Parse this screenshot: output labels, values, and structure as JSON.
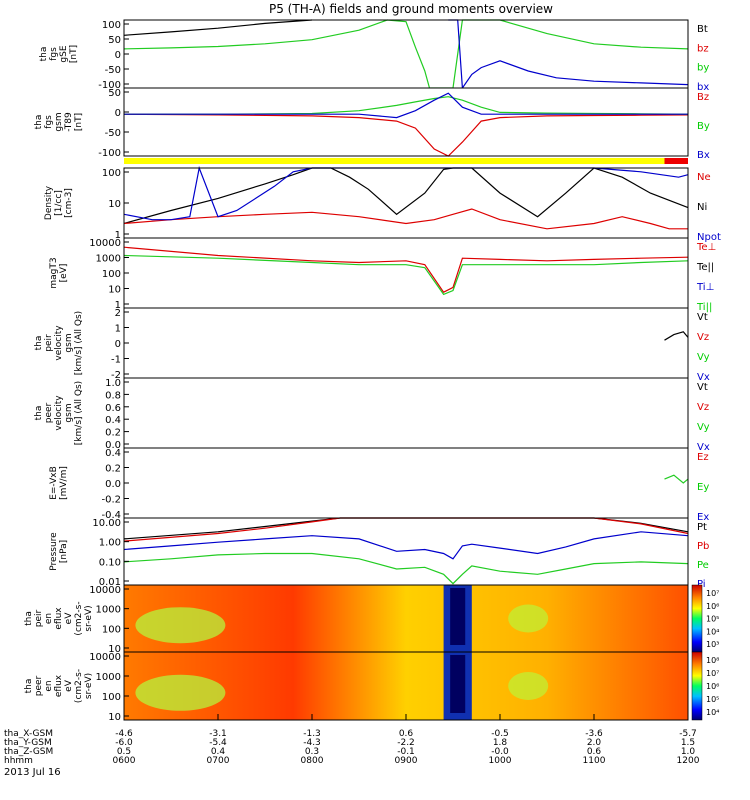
{
  "title": "P5 (TH-A) fields and ground moments overview",
  "date_label": "2013 Jul 16",
  "colorbar_top_bottom": {
    "top": "#cc0000",
    "bottom": "#000060"
  },
  "chart_data": {
    "type": "line",
    "x_axis": {
      "unit": "hhmm",
      "ticks": [
        "0600",
        "0700",
        "0800",
        "0900",
        "1000",
        "1100",
        "1200"
      ],
      "extra_rows": [
        {
          "label": "tha_X-GSM",
          "values": [
            "-4.6",
            "-3.1",
            "-1.3",
            "0.6",
            "-0.5",
            "-3.6",
            "-5.7"
          ]
        },
        {
          "label": "tha_Y-GSM",
          "values": [
            "-6.0",
            "-5.4",
            "-4.3",
            "-2.2",
            "1.8",
            "2.0",
            "1.5"
          ]
        },
        {
          "label": "tha_Z-GSM",
          "values": [
            "0.5",
            "0.4",
            "0.3",
            "-0.1",
            "-0.0",
            "0.6",
            "1.0"
          ]
        }
      ],
      "time_range": [
        "0600",
        "1200"
      ]
    },
    "panels": [
      {
        "id": "fgs-gse",
        "ylabel": [
          "tha",
          "fgs",
          "gSE",
          "[nT]"
        ],
        "yticks": [
          "100",
          "50",
          "0",
          "-50",
          "-100"
        ],
        "ylim": [
          -100,
          100
        ],
        "legend": [
          "Bt",
          "bz",
          "by",
          "bx"
        ],
        "legend_colors": [
          "#000000",
          "#dd0000",
          "#00cc00",
          "#0000cc"
        ],
        "series": [
          {
            "name": "Bt",
            "color": "#000000",
            "x": [
              6.0,
              6.5,
              7.0,
              7.5,
              8.0
            ],
            "y": [
              55,
              65,
              76,
              90,
              100
            ]
          },
          {
            "name": "by",
            "color": "#22cc22",
            "x": [
              6.0,
              6.5,
              7.0,
              7.5,
              8.0,
              8.5,
              8.8,
              9.0,
              9.1,
              9.2,
              9.25,
              9.5,
              9.6,
              10.0,
              10.5,
              11.0,
              11.5,
              12.0
            ],
            "y": [
              15,
              18,
              22,
              30,
              42,
              70,
              100,
              95,
              20,
              -50,
              -100,
              -100,
              100,
              100,
              60,
              30,
              20,
              15
            ]
          },
          {
            "name": "bx",
            "color": "#0000cc",
            "x": [
              9.45,
              9.5,
              9.55,
              9.6,
              9.7,
              9.8,
              10.0,
              10.3,
              10.6,
              11.0,
              11.5,
              12.0
            ],
            "y": [
              100,
              100,
              100,
              -100,
              -60,
              -40,
              -20,
              -50,
              -70,
              -80,
              -85,
              -90
            ]
          }
        ]
      },
      {
        "id": "fgs-gsm-dipole",
        "ylabel": [
          "tha",
          "fgs",
          "gsm",
          "-T89",
          "[nT]"
        ],
        "yticks": [
          "50",
          "0",
          "-50",
          "-100"
        ],
        "ylim": [
          -120,
          75
        ],
        "legend": [
          "Bz",
          "By",
          "Bx"
        ],
        "legend_colors": [
          "#dd0000",
          "#00cc00",
          "#0000cc"
        ],
        "series": [
          {
            "name": "Bz",
            "color": "#dd0000",
            "x": [
              6.0,
              7.0,
              8.0,
              8.5,
              8.9,
              9.1,
              9.3,
              9.45,
              9.6,
              9.8,
              10.0,
              10.5,
              11.0,
              11.5,
              12.0
            ],
            "y": [
              0,
              -2,
              -5,
              -10,
              -20,
              -40,
              -100,
              -120,
              -80,
              -20,
              -10,
              -5,
              -4,
              -3,
              -2
            ]
          },
          {
            "name": "By",
            "color": "#22cc22",
            "x": [
              6.0,
              7.0,
              8.0,
              8.5,
              8.9,
              9.1,
              9.3,
              9.45,
              9.6,
              9.8,
              10.0,
              10.5,
              11.0,
              11.5,
              12.0
            ],
            "y": [
              0,
              0,
              2,
              10,
              25,
              35,
              45,
              50,
              40,
              20,
              5,
              3,
              2,
              1,
              0
            ]
          },
          {
            "name": "Bx",
            "color": "#0000cc",
            "x": [
              6.0,
              7.0,
              8.0,
              8.5,
              8.9,
              9.1,
              9.3,
              9.45,
              9.6,
              9.8,
              10.0,
              10.5,
              11.0,
              11.5,
              12.0
            ],
            "y": [
              0,
              0,
              0,
              0,
              -10,
              10,
              40,
              60,
              20,
              0,
              0,
              0,
              0,
              0,
              0
            ]
          }
        ],
        "mode_bar": {
          "segments": [
            {
              "from": 6.0,
              "to": 11.75,
              "color": "#ffff00"
            },
            {
              "from": 11.75,
              "to": 12.0,
              "color": "#ee0000"
            }
          ]
        }
      },
      {
        "id": "density",
        "ylabel": [
          "Density",
          "[1/cc]",
          "[cm-3]"
        ],
        "yticks": [
          "100",
          "10",
          "1"
        ],
        "ylim": [
          1,
          200
        ],
        "log": true,
        "legend": [
          "Ne",
          "Ni",
          "Npot"
        ],
        "legend_colors": [
          "#dd0000",
          "#000000",
          "#0000cc"
        ],
        "series": [
          {
            "name": "Ni",
            "color": "#000000",
            "x": [
              6.0,
              6.5,
              7.0,
              7.5,
              7.8,
              8.0,
              8.2,
              8.4,
              8.6,
              8.9,
              9.2,
              9.4,
              9.5,
              9.7,
              10.0,
              10.4,
              10.7,
              11.0,
              11.3,
              11.6,
              12.0
            ],
            "y": [
              3,
              8,
              20,
              60,
              120,
              200,
              200,
              100,
              40,
              6,
              30,
              180,
              200,
              200,
              30,
              5,
              30,
              200,
              100,
              30,
              10
            ]
          },
          {
            "name": "Ne",
            "color": "#dd0000",
            "x": [
              6.0,
              6.5,
              7.0,
              7.5,
              8.0,
              8.5,
              9.0,
              9.3,
              9.5,
              9.7,
              10.0,
              10.5,
              11.0,
              11.3,
              11.6,
              11.8,
              12.0
            ],
            "y": [
              3,
              4,
              5,
              6,
              7,
              5,
              3,
              4,
              6,
              9,
              4,
              2,
              3,
              5,
              3,
              2,
              2
            ]
          },
          {
            "name": "Npot",
            "color": "#0000cc",
            "x": [
              6.0,
              6.3,
              6.5,
              6.7,
              6.8,
              7.0,
              7.2,
              7.4,
              7.6,
              7.8,
              8.0,
              10.0,
              11.0,
              11.5,
              11.9,
              12.0
            ],
            "y": [
              6,
              4,
              4,
              5,
              200,
              5,
              8,
              20,
              50,
              150,
              200,
              200,
              200,
              150,
              100,
              120
            ]
          }
        ]
      },
      {
        "id": "temperature",
        "ylabel": [
          "magT3",
          "[eV]"
        ],
        "yticks": [
          "10000",
          "1000",
          "100",
          "10",
          "1"
        ],
        "ylim": [
          1,
          10000
        ],
        "log": true,
        "legend": [
          "Te⊥",
          "Te||",
          "Ti⊥",
          "Ti||"
        ],
        "legend_colors": [
          "#dd0000",
          "#000000",
          "#0000cc",
          "#00cc00"
        ],
        "series": [
          {
            "name": "Te⊥",
            "color": "#dd0000",
            "x": [
              6.0,
              7.0,
              8.0,
              8.5,
              9.0,
              9.2,
              9.4,
              9.5,
              9.6,
              10.0,
              10.5,
              11.0,
              11.5,
              12.0
            ],
            "y": [
              3000,
              1000,
              500,
              400,
              500,
              300,
              8,
              15,
              700,
              600,
              500,
              600,
              700,
              800
            ]
          },
          {
            "name": "Ti||",
            "color": "#22cc22",
            "x": [
              6.0,
              7.0,
              8.0,
              8.5,
              9.0,
              9.2,
              9.4,
              9.5,
              9.6,
              10.0,
              10.5,
              11.0,
              11.5,
              12.0
            ],
            "y": [
              1000,
              700,
              400,
              300,
              300,
              200,
              6,
              10,
              300,
              300,
              300,
              300,
              400,
              500
            ]
          }
        ]
      },
      {
        "id": "peir-velocity",
        "ylabel": [
          "tha",
          "peir",
          "velocity",
          "gsm",
          "[km/s] (All Qs)"
        ],
        "yticks": [
          "2",
          "1",
          "0",
          "-1",
          "-2"
        ],
        "ylim": [
          -2.5,
          2.5
        ],
        "legend": [
          "Vt",
          "Vz",
          "Vy",
          "Vx"
        ],
        "legend_colors": [
          "#000000",
          "#dd0000",
          "#00cc00",
          "#0000cc"
        ],
        "series": [
          {
            "name": "Vt",
            "color": "#000000",
            "x": [
              11.75,
              11.85,
              11.95,
              12.0
            ],
            "y": [
              0.2,
              0.6,
              0.8,
              0.4
            ]
          }
        ]
      },
      {
        "id": "peer-velocity",
        "ylabel": [
          "tha",
          "peer",
          "velocity",
          "gsm",
          "[km/s] (All Qs)"
        ],
        "yticks": [
          "1.0",
          "0.8",
          "0.6",
          "0.4",
          "0.2",
          "0.0"
        ],
        "ylim": [
          0,
          1
        ],
        "legend": [
          "Vt",
          "Vz",
          "Vy",
          "Vx"
        ],
        "legend_colors": [
          "#000000",
          "#dd0000",
          "#00cc00",
          "#0000cc"
        ],
        "series": []
      },
      {
        "id": "efield",
        "ylabel": [
          "E=-VxB",
          "[mV/m]"
        ],
        "yticks": [
          "0.4",
          "0.2",
          "0.0",
          "-0.2",
          "-0.4"
        ],
        "ylim": [
          -0.45,
          0.45
        ],
        "legend": [
          "Ez",
          "Ey",
          "Ex"
        ],
        "legend_colors": [
          "#dd0000",
          "#00cc00",
          "#0000cc"
        ],
        "series": [
          {
            "name": "Ey",
            "color": "#22cc22",
            "x": [
              11.75,
              11.85,
              11.95,
              12.0
            ],
            "y": [
              0.05,
              0.1,
              0.0,
              0.05
            ]
          }
        ]
      },
      {
        "id": "pressure",
        "ylabel": [
          "Pressure",
          "[nPa]"
        ],
        "yticks": [
          "10.00",
          "1.00",
          "0.10",
          "0.01"
        ],
        "ylim": [
          0.005,
          30
        ],
        "log": true,
        "legend": [
          "Pt",
          "Pb",
          "Pe",
          "Pi"
        ],
        "legend_colors": [
          "#000000",
          "#dd0000",
          "#00cc00",
          "#0000cc"
        ],
        "series": [
          {
            "name": "Pt",
            "color": "#000000",
            "x": [
              6.0,
              7.0,
              7.5,
              8.0,
              8.3,
              11.0,
              11.5,
              12.0
            ],
            "y": [
              2,
              5,
              10,
              20,
              30,
              30,
              15,
              5
            ]
          },
          {
            "name": "Pb",
            "color": "#dd0000",
            "x": [
              6.0,
              7.0,
              7.5,
              8.0,
              8.3,
              11.0,
              11.5,
              12.0
            ],
            "y": [
              1.5,
              4,
              8,
              18,
              30,
              30,
              14,
              4
            ]
          },
          {
            "name": "Pi",
            "color": "#0000cc",
            "x": [
              6.0,
              6.5,
              7.0,
              7.5,
              8.0,
              8.5,
              8.9,
              9.2,
              9.4,
              9.5,
              9.6,
              9.7,
              10.0,
              10.4,
              10.7,
              11.0,
              11.5,
              12.0
            ],
            "y": [
              0.5,
              0.8,
              1.3,
              2,
              3,
              2,
              0.4,
              0.5,
              0.3,
              0.15,
              0.8,
              1,
              0.6,
              0.3,
              0.7,
              2,
              5,
              3
            ]
          },
          {
            "name": "Pe",
            "color": "#22cc22",
            "x": [
              6.0,
              6.5,
              7.0,
              7.5,
              8.0,
              8.5,
              8.9,
              9.2,
              9.4,
              9.5,
              9.6,
              9.7,
              10.0,
              10.4,
              10.7,
              11.0,
              11.5,
              12.0
            ],
            "y": [
              0.1,
              0.15,
              0.25,
              0.3,
              0.3,
              0.15,
              0.04,
              0.05,
              0.02,
              0.006,
              0.02,
              0.06,
              0.03,
              0.02,
              0.04,
              0.08,
              0.1,
              0.08
            ]
          }
        ]
      },
      {
        "id": "peir-eflux",
        "type": "heatmap",
        "ylabel": [
          "tha",
          "peir",
          "en",
          "eflux",
          "eV",
          "(cm2-s-",
          "sr-eV)"
        ],
        "yticks": [
          "10000",
          "1000",
          "100",
          "10"
        ],
        "colorbar_ticks": [
          "10⁷",
          "10⁶",
          "10⁵",
          "10⁴",
          "10³"
        ]
      },
      {
        "id": "peer-eflux",
        "type": "heatmap",
        "ylabel": [
          "tha",
          "peer",
          "en",
          "eflux",
          "eV",
          "(cm2-s-",
          "sr-eV)"
        ],
        "yticks": [
          "10000",
          "1000",
          "100",
          "10"
        ],
        "colorbar_ticks": [
          "10⁸",
          "10⁷",
          "10⁶",
          "10⁵",
          "10⁴"
        ]
      }
    ]
  }
}
